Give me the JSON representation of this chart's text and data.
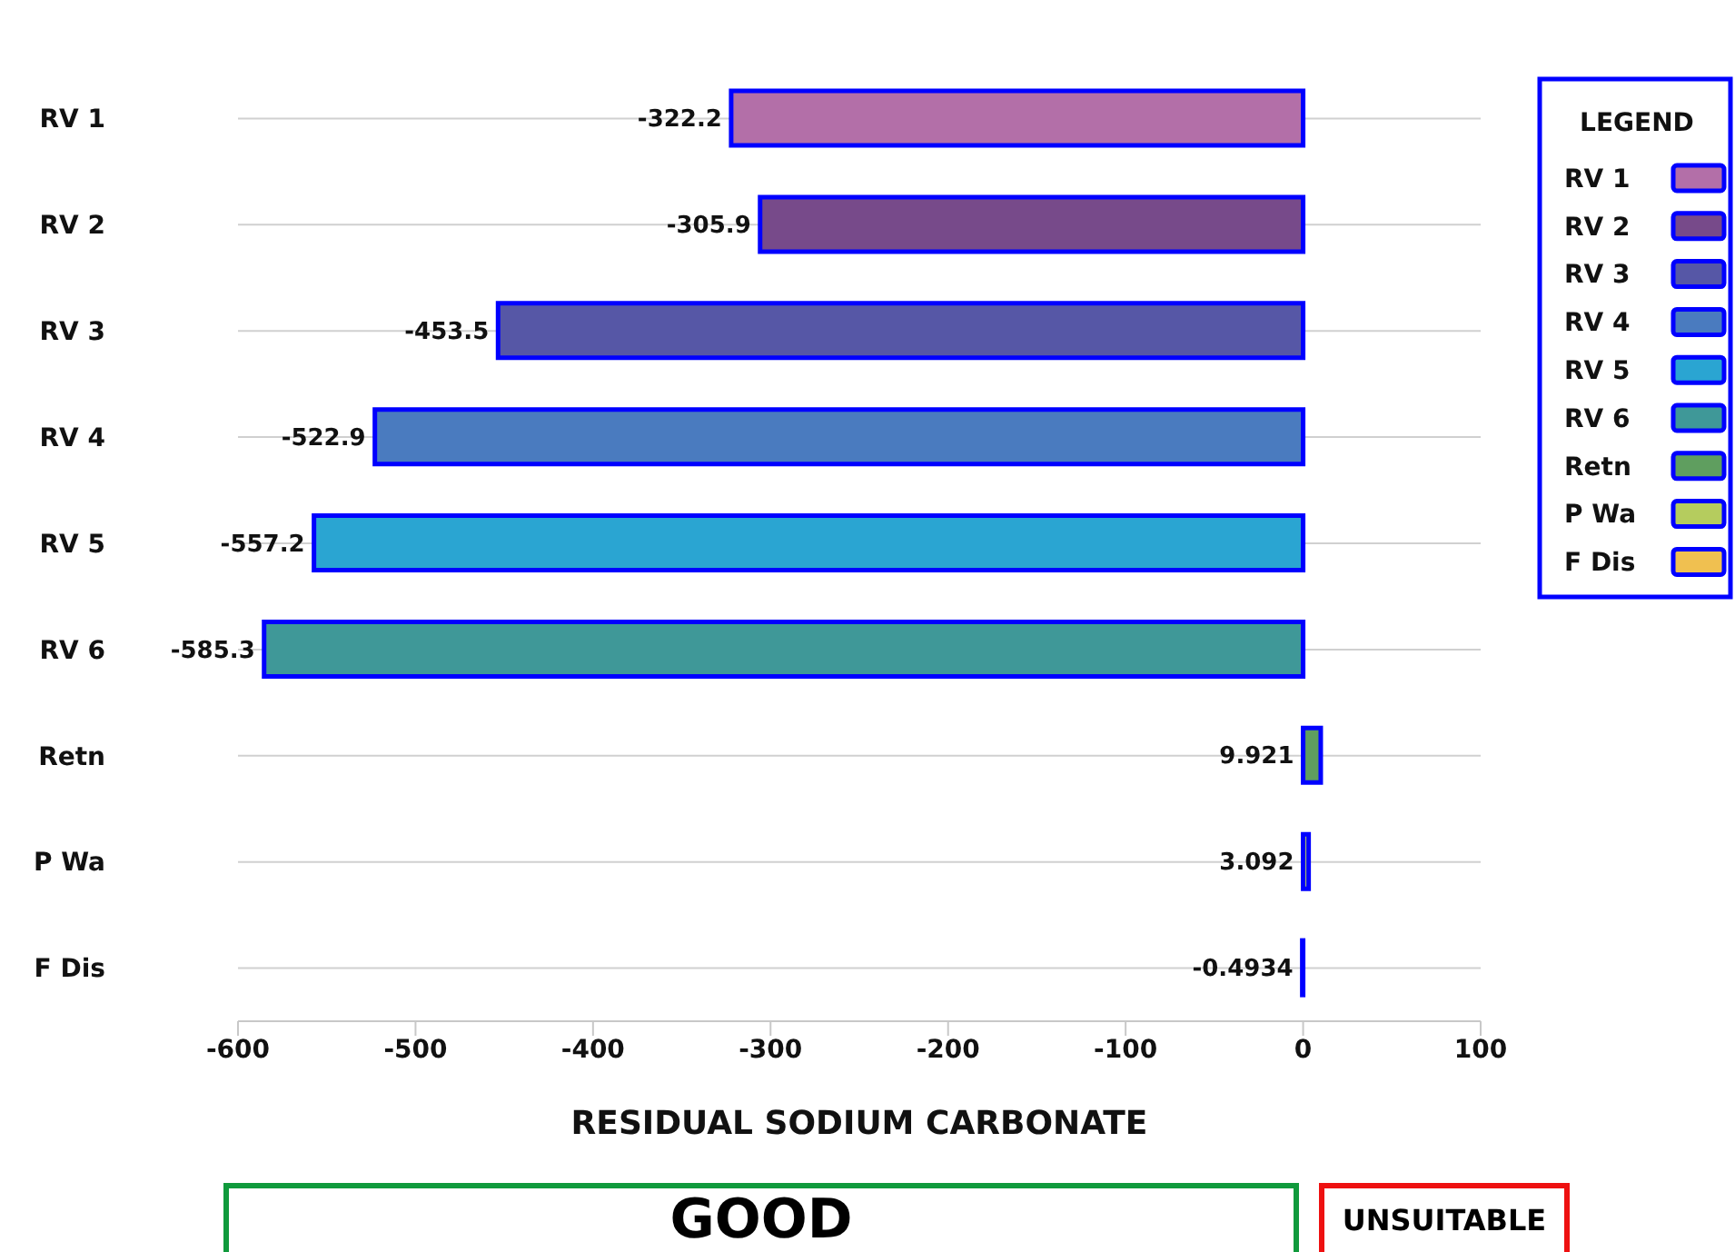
{
  "chart_data": {
    "type": "bar",
    "orientation": "horizontal",
    "stacked": true,
    "xlabel": "RESIDUAL SODIUM CARBONATE",
    "legend_title": "LEGEND",
    "categories": [
      "RV 1",
      "RV 2",
      "RV 3",
      "RV 4",
      "RV 5",
      "RV 6",
      "Retn",
      "P Wa",
      "F Dis"
    ],
    "series": [
      {
        "name": "RV 1",
        "color": "#b36fa8",
        "values": [
          -322.2,
          null,
          null,
          null,
          null,
          null,
          null,
          null,
          null
        ]
      },
      {
        "name": "RV 2",
        "color": "#774a8a",
        "values": [
          null,
          -305.9,
          null,
          null,
          null,
          null,
          null,
          null,
          null
        ]
      },
      {
        "name": "RV 3",
        "color": "#5657a6",
        "values": [
          null,
          null,
          -453.5,
          null,
          null,
          null,
          null,
          null,
          null
        ]
      },
      {
        "name": "RV 4",
        "color": "#4a7bbf",
        "values": [
          null,
          null,
          null,
          -522.9,
          null,
          null,
          null,
          null,
          null
        ]
      },
      {
        "name": "RV 5",
        "color": "#2aa5d2",
        "values": [
          null,
          null,
          null,
          null,
          -557.2,
          null,
          null,
          null,
          null
        ]
      },
      {
        "name": "RV 6",
        "color": "#3f9898",
        "values": [
          null,
          null,
          null,
          null,
          null,
          -585.3,
          null,
          null,
          null
        ]
      },
      {
        "name": "Retn",
        "color": "#5f9e5f",
        "values": [
          null,
          null,
          null,
          null,
          null,
          null,
          9.921,
          null,
          null
        ]
      },
      {
        "name": "P Wa",
        "color": "#b5cc5e",
        "values": [
          null,
          null,
          null,
          null,
          null,
          null,
          null,
          3.092,
          null
        ]
      },
      {
        "name": "F Dis",
        "color": "#f0c050",
        "values": [
          null,
          null,
          null,
          null,
          null,
          null,
          null,
          null,
          -0.4934
        ]
      }
    ],
    "xlim": [
      -600,
      100
    ],
    "xticks": [
      -600,
      -500,
      -400,
      -300,
      -200,
      -100,
      0,
      100
    ],
    "grid": "y",
    "legend": "top right",
    "data_labels": true,
    "annotations": [
      "GOOD",
      "UNSUITABLE"
    ]
  }
}
